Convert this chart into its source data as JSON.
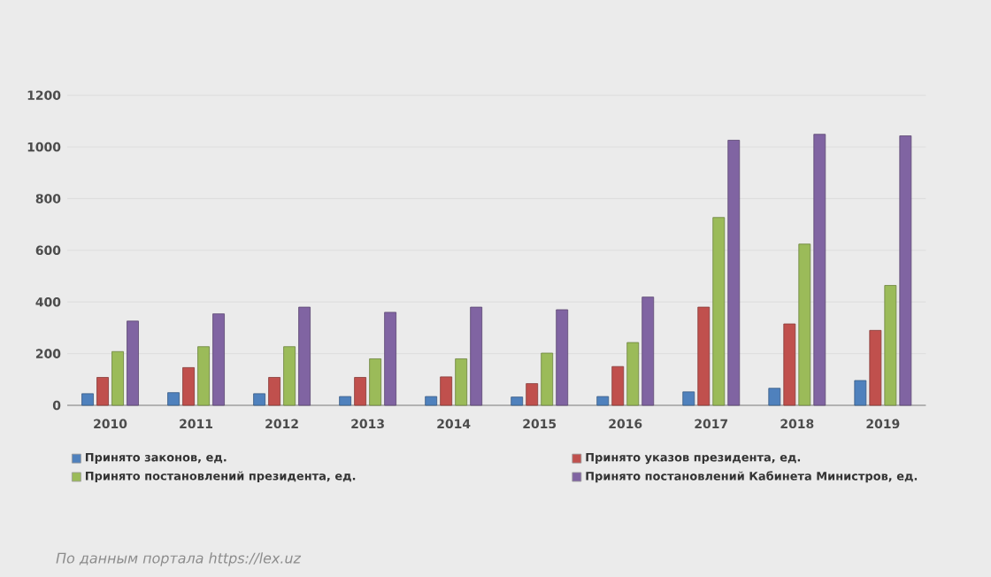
{
  "chart_data": {
    "type": "bar",
    "categories": [
      "2010",
      "2011",
      "2012",
      "2013",
      "2014",
      "2015",
      "2016",
      "2017",
      "2018",
      "2019"
    ],
    "series": [
      {
        "name": "Принято законов, ед.",
        "color": "#4f81bd",
        "values": [
          45,
          49,
          45,
          34,
          34,
          32,
          34,
          52,
          66,
          96
        ]
      },
      {
        "name": "Принято указов президента, ед.",
        "color": "#c0504d",
        "values": [
          108,
          146,
          108,
          108,
          110,
          84,
          150,
          380,
          315,
          290
        ]
      },
      {
        "name": "Принято постановлений президента, ед.",
        "color": "#9bbb59",
        "values": [
          208,
          227,
          227,
          180,
          180,
          202,
          243,
          727,
          624,
          464
        ]
      },
      {
        "name": "Принято постановлений Кабинета Министров, ед.",
        "color": "#8064a2",
        "values": [
          326,
          354,
          380,
          360,
          380,
          370,
          419,
          1026,
          1049,
          1043
        ]
      }
    ],
    "ylim": [
      0,
      1200
    ],
    "yticks": [
      0,
      200,
      400,
      600,
      800,
      1000,
      1200
    ],
    "grid": "y",
    "legend": "bottom",
    "annotations": [
      "По данным портала https://lex.uz"
    ]
  }
}
